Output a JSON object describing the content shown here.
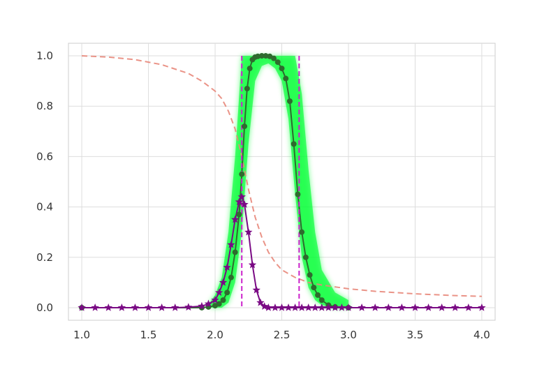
{
  "chart_data": {
    "type": "line",
    "title": "",
    "xlabel": "",
    "ylabel": "",
    "xlim": [
      0.9,
      4.1
    ],
    "ylim": [
      -0.05,
      1.05
    ],
    "x_ticks": [
      1.0,
      1.5,
      2.0,
      2.5,
      3.0,
      3.5,
      4.0
    ],
    "x_tick_labels": [
      "1.0",
      "1.5",
      "2.0",
      "2.5",
      "3.0",
      "3.5",
      "4.0"
    ],
    "y_ticks": [
      0.0,
      0.2,
      0.4,
      0.6,
      0.8,
      1.0
    ],
    "y_tick_labels": [
      "0.0",
      "0.2",
      "0.4",
      "0.6",
      "0.8",
      "1.0"
    ],
    "grid": true,
    "legend": "none",
    "colors": {
      "dashed_curve": "#e8877a",
      "green_series": "#2e6b2e",
      "green_band": "#00ff33",
      "purple_series": "#7a0a84",
      "vlines": "#cc22cc",
      "grid": "#dddddd"
    },
    "series": [
      {
        "style": "dashed",
        "x": [
          1.0,
          1.2,
          1.4,
          1.6,
          1.8,
          1.9,
          2.0,
          2.05,
          2.1,
          2.15,
          2.2,
          2.25,
          2.3,
          2.35,
          2.4,
          2.45,
          2.5,
          2.6,
          2.7,
          2.8,
          3.0,
          3.2,
          3.5,
          3.8,
          4.0
        ],
        "y": [
          1.0,
          0.995,
          0.985,
          0.965,
          0.93,
          0.9,
          0.86,
          0.83,
          0.78,
          0.71,
          0.6,
          0.47,
          0.36,
          0.28,
          0.22,
          0.18,
          0.15,
          0.12,
          0.1,
          0.09,
          0.075,
          0.065,
          0.055,
          0.048,
          0.045
        ]
      },
      {
        "style": "line-circle",
        "x": [
          1.0,
          1.9,
          1.95,
          2.0,
          2.03,
          2.06,
          2.09,
          2.12,
          2.15,
          2.18,
          2.2,
          2.22,
          2.24,
          2.26,
          2.28,
          2.3,
          2.32,
          2.35,
          2.38,
          2.41,
          2.44,
          2.47,
          2.5,
          2.53,
          2.56,
          2.59,
          2.62,
          2.65,
          2.68,
          2.71,
          2.74,
          2.77,
          2.8,
          2.85,
          2.9,
          3.0
        ],
        "y": [
          0.0,
          0.0,
          0.003,
          0.008,
          0.015,
          0.03,
          0.06,
          0.12,
          0.22,
          0.37,
          0.53,
          0.72,
          0.87,
          0.95,
          0.985,
          0.995,
          0.998,
          1.0,
          1.0,
          0.998,
          0.99,
          0.975,
          0.95,
          0.91,
          0.82,
          0.65,
          0.45,
          0.3,
          0.2,
          0.13,
          0.08,
          0.05,
          0.03,
          0.01,
          0.003,
          0.0
        ]
      },
      {
        "style": "line-star",
        "x": [
          1.0,
          1.1,
          1.2,
          1.3,
          1.4,
          1.5,
          1.6,
          1.7,
          1.8,
          1.9,
          1.95,
          2.0,
          2.03,
          2.06,
          2.09,
          2.12,
          2.15,
          2.18,
          2.2,
          2.22,
          2.25,
          2.28,
          2.31,
          2.34,
          2.37,
          2.4,
          2.45,
          2.5,
          2.55,
          2.6,
          2.65,
          2.7,
          2.75,
          2.8,
          2.85,
          2.9,
          2.95,
          3.0,
          3.1,
          3.2,
          3.3,
          3.4,
          3.5,
          3.6,
          3.7,
          3.8,
          3.9,
          4.0
        ],
        "y": [
          0.0,
          0.0,
          0.0,
          0.0,
          0.0,
          0.0,
          0.0,
          0.0,
          0.002,
          0.006,
          0.015,
          0.03,
          0.06,
          0.1,
          0.16,
          0.25,
          0.35,
          0.42,
          0.44,
          0.41,
          0.3,
          0.17,
          0.07,
          0.02,
          0.005,
          0.0,
          0.0,
          0.0,
          0.0,
          0.0,
          0.0,
          0.0,
          0.0,
          0.0,
          0.0,
          0.0,
          0.0,
          0.0,
          0.0,
          0.0,
          0.0,
          0.0,
          0.0,
          0.0,
          0.0,
          0.0,
          0.0,
          0.0
        ]
      }
    ],
    "vertical_lines": [
      2.2,
      2.63
    ],
    "band": {
      "x": [
        1.96,
        2.0,
        2.05,
        2.1,
        2.15,
        2.2,
        2.25,
        2.3,
        2.35,
        2.4,
        2.45,
        2.5,
        2.55,
        2.6,
        2.65,
        2.7,
        2.75,
        2.8,
        2.9,
        3.0
      ],
      "low": [
        0.0,
        0.0,
        0.0,
        0.02,
        0.1,
        0.3,
        0.65,
        0.9,
        0.96,
        0.97,
        0.95,
        0.9,
        0.75,
        0.45,
        0.2,
        0.08,
        0.03,
        0.01,
        0.0,
        0.0
      ],
      "high": [
        0.02,
        0.05,
        0.12,
        0.3,
        0.6,
        1.0,
        1.0,
        1.0,
        1.0,
        1.0,
        1.0,
        1.0,
        1.0,
        1.0,
        0.85,
        0.55,
        0.3,
        0.15,
        0.06,
        0.03
      ]
    }
  }
}
